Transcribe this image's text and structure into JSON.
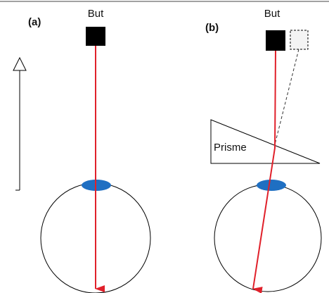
{
  "panels": [
    {
      "label": "(a)",
      "target": "But"
    },
    {
      "label": "(b)",
      "target": "But",
      "prism": "Prisme"
    }
  ]
}
